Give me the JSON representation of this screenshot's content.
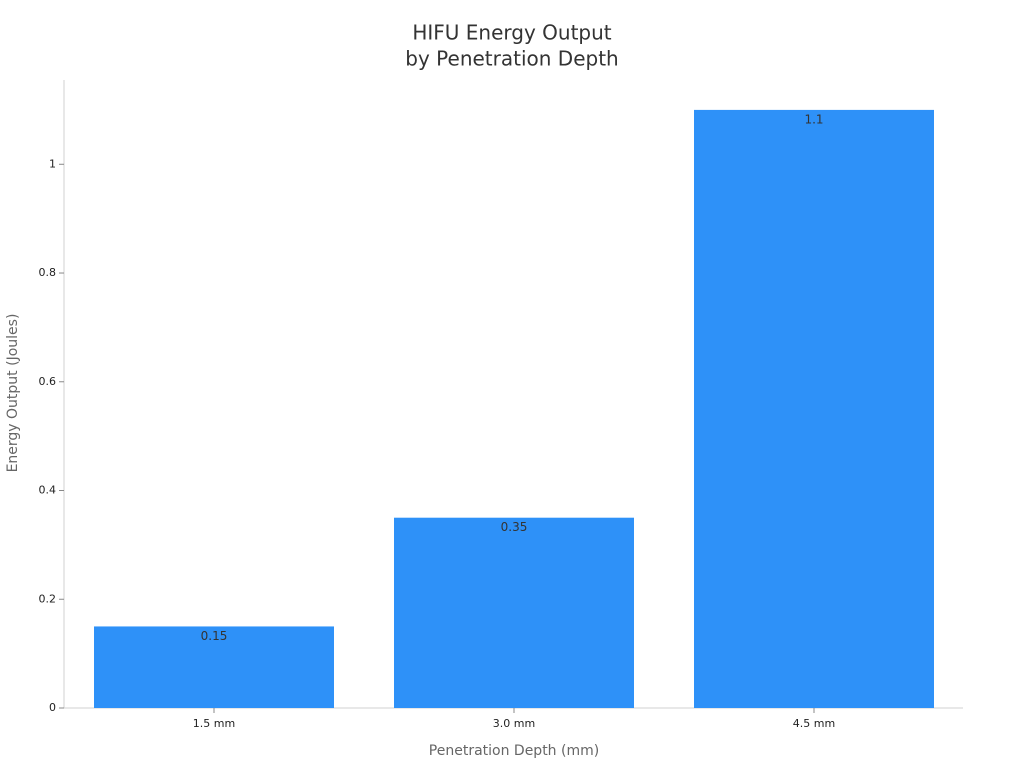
{
  "chart_data": {
    "type": "bar",
    "title": [
      "HIFU Energy Output",
      "by Penetration Depth"
    ],
    "x_label": "Penetration Depth (mm)",
    "y_label": "Energy Output (Joules)",
    "categories": [
      "1.5 mm",
      "3.0 mm",
      "4.5 mm"
    ],
    "values": [
      0.15,
      0.35,
      1.1
    ],
    "color": "#2e91f8",
    "ylim": [
      0,
      1.155
    ],
    "yticks": [
      0,
      0.2,
      0.4,
      0.6,
      0.8,
      1
    ],
    "grid": false
  }
}
